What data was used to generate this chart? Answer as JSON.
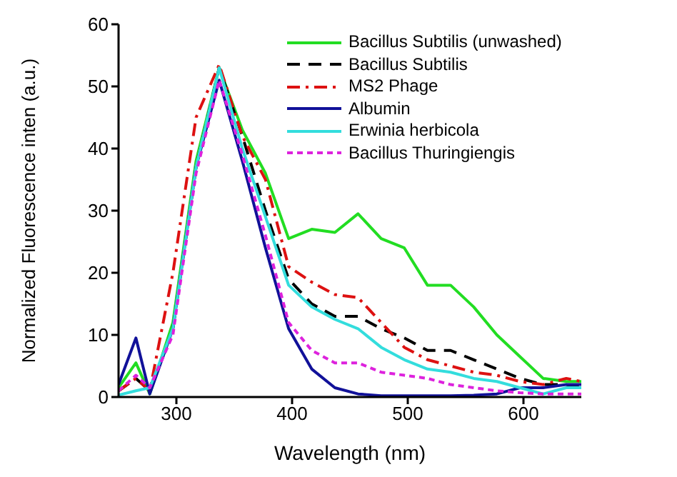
{
  "chart_data": {
    "type": "line",
    "xlabel": "Wavelength (nm)",
    "ylabel": "Normalized Fluorescence inten (a.u.)",
    "x": [
      250,
      265,
      277,
      297,
      317,
      337,
      357,
      377,
      397,
      417,
      437,
      457,
      477,
      497,
      517,
      537,
      557,
      577,
      597,
      617,
      637,
      650
    ],
    "xlim": [
      250,
      650
    ],
    "xticks": [
      300,
      400,
      500,
      600
    ],
    "ylim": [
      0,
      60
    ],
    "yticks": [
      0,
      10,
      20,
      30,
      40,
      50,
      60
    ],
    "grid": false,
    "legend": "top right",
    "marker": "none",
    "series": [
      {
        "name": "Bacillus Subtilis (unwashed)",
        "color": "#22dd22",
        "line_style": "solid",
        "values": [
          1.5,
          5.5,
          0.5,
          12,
          38,
          53,
          43,
          36,
          25.5,
          27,
          26.5,
          29.5,
          25.5,
          24,
          18,
          18,
          14.5,
          10,
          6.5,
          3,
          2.5,
          2.5
        ]
      },
      {
        "name": "Bacillus Subtilis",
        "color": "#000000",
        "line_style": "dashed",
        "values": [
          1,
          3,
          1,
          11,
          37,
          53,
          42,
          30,
          19,
          15,
          13,
          13,
          11,
          9.5,
          7.5,
          7.5,
          6,
          4.5,
          3,
          2,
          2,
          1.5
        ]
      },
      {
        "name": "MS2 Phage",
        "color": "#dd1111",
        "line_style": "dashdot",
        "values": [
          1,
          3,
          1,
          20,
          45,
          53.5,
          42,
          35,
          21,
          18.5,
          16.5,
          16,
          12,
          8,
          6,
          5,
          4,
          3.5,
          2.5,
          2,
          3,
          2.5
        ]
      },
      {
        "name": "Albumin",
        "color": "#111199",
        "line_style": "solid",
        "values": [
          2,
          9.5,
          0.5,
          11,
          37,
          51,
          38,
          24,
          11,
          4.5,
          1.5,
          0.5,
          0.2,
          0.2,
          0.2,
          0.2,
          0.3,
          0.5,
          1.5,
          1.5,
          2,
          2
        ]
      },
      {
        "name": "Erwinia herbicola",
        "color": "#33dddd",
        "line_style": "solid",
        "values": [
          0.3,
          1,
          1.5,
          11,
          37,
          53,
          40,
          29,
          18,
          14.5,
          12.5,
          11,
          8,
          6,
          4.5,
          4,
          3,
          2.5,
          1.5,
          0.5,
          1.5,
          1.5
        ]
      },
      {
        "name": "Bacillus Thuringiengis",
        "color": "#dd22dd",
        "line_style": "dotted",
        "values": [
          1,
          3.5,
          1.5,
          10,
          36,
          51,
          39,
          26,
          12,
          7.5,
          5.5,
          5.5,
          4,
          3.5,
          3,
          2,
          1.5,
          1,
          0.7,
          0.5,
          0.5,
          0.5
        ]
      }
    ]
  }
}
